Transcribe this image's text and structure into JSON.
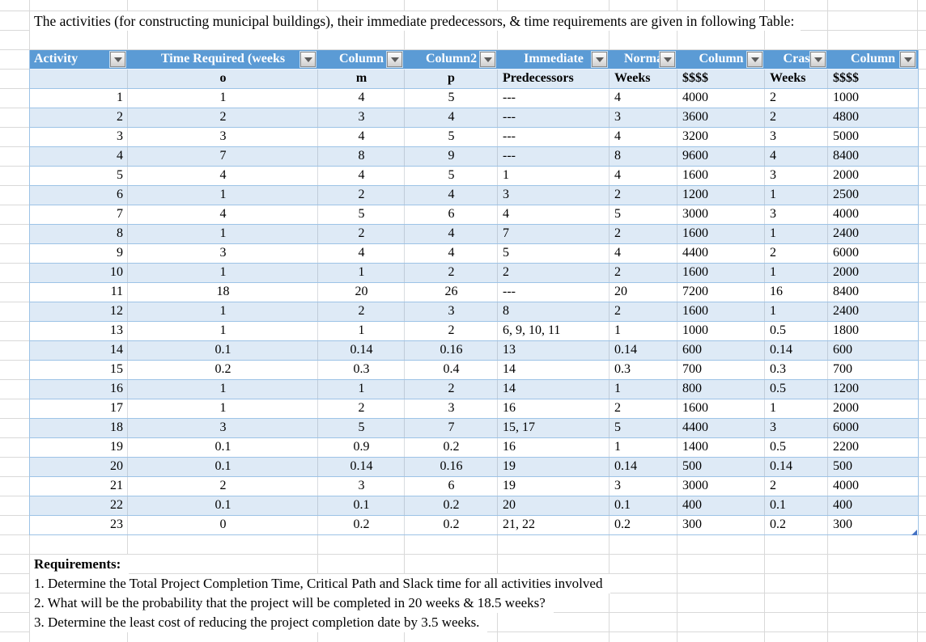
{
  "title": "The activities (for constructing municipal buildings), their immediate predecessors, & time requirements are given in following Table:",
  "table": {
    "headers": [
      {
        "label": "Activity",
        "sub": ""
      },
      {
        "label": "Time Required (weeks",
        "sub": "o"
      },
      {
        "label": "Column",
        "sub": "m"
      },
      {
        "label": "Column2",
        "sub": "p"
      },
      {
        "label": "Immediate",
        "sub": "Predecessors"
      },
      {
        "label": "Norma",
        "sub": "Weeks"
      },
      {
        "label": "Column",
        "sub": "$$$$"
      },
      {
        "label": "Cras",
        "sub": "Weeks"
      },
      {
        "label": "Column",
        "sub": "$$$$"
      }
    ],
    "rows": [
      [
        "1",
        "1",
        "4",
        "5",
        "---",
        "4",
        "4000",
        "2",
        "1000"
      ],
      [
        "2",
        "2",
        "3",
        "4",
        "---",
        "3",
        "3600",
        "2",
        "4800"
      ],
      [
        "3",
        "3",
        "4",
        "5",
        "---",
        "4",
        "3200",
        "3",
        "5000"
      ],
      [
        "4",
        "7",
        "8",
        "9",
        "---",
        "8",
        "9600",
        "4",
        "8400"
      ],
      [
        "5",
        "4",
        "4",
        "5",
        "1",
        "4",
        "1600",
        "3",
        "2000"
      ],
      [
        "6",
        "1",
        "2",
        "4",
        "3",
        "2",
        "1200",
        "1",
        "2500"
      ],
      [
        "7",
        "4",
        "5",
        "6",
        "4",
        "5",
        "3000",
        "3",
        "4000"
      ],
      [
        "8",
        "1",
        "2",
        "4",
        "7",
        "2",
        "1600",
        "1",
        "2400"
      ],
      [
        "9",
        "3",
        "4",
        "4",
        "5",
        "4",
        "4400",
        "2",
        "6000"
      ],
      [
        "10",
        "1",
        "1",
        "2",
        "2",
        "2",
        "1600",
        "1",
        "2000"
      ],
      [
        "11",
        "18",
        "20",
        "26",
        "---",
        "20",
        "7200",
        "16",
        "8400"
      ],
      [
        "12",
        "1",
        "2",
        "3",
        "8",
        "2",
        "1600",
        "1",
        "2400"
      ],
      [
        "13",
        "1",
        "1",
        "2",
        "6, 9, 10, 11",
        "1",
        "1000",
        "0.5",
        "1800"
      ],
      [
        "14",
        "0.1",
        "0.14",
        "0.16",
        "13",
        "0.14",
        "600",
        "0.14",
        "600"
      ],
      [
        "15",
        "0.2",
        "0.3",
        "0.4",
        "14",
        "0.3",
        "700",
        "0.3",
        "700"
      ],
      [
        "16",
        "1",
        "1",
        "2",
        "14",
        "1",
        "800",
        "0.5",
        "1200"
      ],
      [
        "17",
        "1",
        "2",
        "3",
        "16",
        "2",
        "1600",
        "1",
        "2000"
      ],
      [
        "18",
        "3",
        "5",
        "7",
        "15, 17",
        "5",
        "4400",
        "3",
        "6000"
      ],
      [
        "19",
        "0.1",
        "0.9",
        "0.2",
        "16",
        "1",
        "1400",
        "0.5",
        "2200"
      ],
      [
        "20",
        "0.1",
        "0.14",
        "0.16",
        "19",
        "0.14",
        "500",
        "0.14",
        "500"
      ],
      [
        "21",
        "2",
        "3",
        "6",
        "19",
        "3",
        "3000",
        "2",
        "4000"
      ],
      [
        "22",
        "0.1",
        "0.1",
        "0.2",
        "20",
        "0.1",
        "400",
        "0.1",
        "400"
      ],
      [
        "23",
        "0",
        "0.2",
        "0.2",
        "21, 22",
        "0.2",
        "300",
        "0.2",
        "300"
      ]
    ]
  },
  "requirements": {
    "heading": "Requirements:",
    "items": [
      "1. Determine the Total Project Completion Time, Critical Path and Slack time for all activities involved",
      "2. What will be the probability that the project will be completed in 20 weeks & 18.5 weeks?",
      "3. Determine the least cost of reducing the project completion date by 3.5 weeks."
    ]
  },
  "icons": {
    "filter-dropdown-icon": "▾"
  },
  "colors": {
    "header_blue": "#5B9BD5",
    "band_blue": "#DEEAF6",
    "row_border_blue": "#9DC3E6",
    "gridline_gray": "#D9D9D9",
    "resize_handle_blue": "#4472C4",
    "header_text": "#FFFFFF"
  }
}
